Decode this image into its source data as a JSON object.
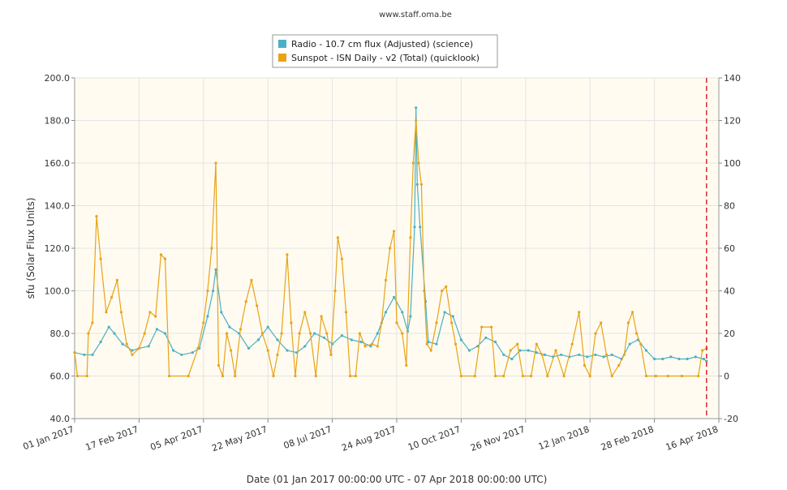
{
  "header": {
    "site": "www.staff.oma.be"
  },
  "colors": {
    "radio": "#4bb0c6",
    "sunspot": "#e8a317",
    "plot_bg": "#fffbf0",
    "marker": "#e0262b"
  },
  "chart_data": {
    "type": "line",
    "title": "",
    "xlabel": "Date (01 Jan 2017 00:00:00 UTC - 07 Apr 2018 00:00:00 UTC)",
    "ylabel": "sfu (Solar Flux Units)",
    "xlim": [
      "2017-01-01",
      "2018-04-16"
    ],
    "ylim": [
      40,
      200
    ],
    "y2lim": [
      -20,
      140
    ],
    "x_ticks": [
      "01 Jan 2017",
      "17 Feb 2017",
      "05 Apr 2017",
      "22 May 2017",
      "08 Jul 2017",
      "24 Aug 2017",
      "10 Oct 2017",
      "26 Nov 2017",
      "12 Jan 2018",
      "28 Feb 2018",
      "16 Apr 2018"
    ],
    "y_ticks": [
      "40.0",
      "60.0",
      "80.0",
      "100.0",
      "120.0",
      "140.0",
      "160.0",
      "180.0",
      "200.0"
    ],
    "y2_ticks": [
      "-20",
      "0",
      "20",
      "40",
      "60",
      "80",
      "100",
      "120",
      "140"
    ],
    "marker_date": "2018-04-07",
    "legend": {
      "position": "top-center",
      "entries": [
        "Radio - 10.7 cm flux (Adjusted) (science)",
        "Sunspot - ISN Daily - v2 (Total) (quicklook)"
      ]
    },
    "series": [
      {
        "name": "Radio - 10.7 cm flux (Adjusted) (science)",
        "axis": "left",
        "points": [
          [
            "2017-01-01",
            71
          ],
          [
            "2017-01-08",
            70
          ],
          [
            "2017-01-14",
            70
          ],
          [
            "2017-01-20",
            76
          ],
          [
            "2017-01-26",
            83
          ],
          [
            "2017-01-30",
            80
          ],
          [
            "2017-02-05",
            75
          ],
          [
            "2017-02-12",
            72
          ],
          [
            "2017-02-17",
            73
          ],
          [
            "2017-02-24",
            74
          ],
          [
            "2017-03-02",
            82
          ],
          [
            "2017-03-08",
            80
          ],
          [
            "2017-03-14",
            72
          ],
          [
            "2017-03-20",
            70
          ],
          [
            "2017-03-28",
            71
          ],
          [
            "2017-04-02",
            73
          ],
          [
            "2017-04-08",
            88
          ],
          [
            "2017-04-12",
            100
          ],
          [
            "2017-04-14",
            110
          ],
          [
            "2017-04-18",
            90
          ],
          [
            "2017-04-24",
            83
          ],
          [
            "2017-05-01",
            80
          ],
          [
            "2017-05-08",
            73
          ],
          [
            "2017-05-15",
            77
          ],
          [
            "2017-05-22",
            83
          ],
          [
            "2017-05-29",
            77
          ],
          [
            "2017-06-05",
            72
          ],
          [
            "2017-06-12",
            71
          ],
          [
            "2017-06-18",
            74
          ],
          [
            "2017-06-25",
            80
          ],
          [
            "2017-07-02",
            78
          ],
          [
            "2017-07-08",
            75
          ],
          [
            "2017-07-15",
            79
          ],
          [
            "2017-07-22",
            77
          ],
          [
            "2017-07-29",
            76
          ],
          [
            "2017-08-05",
            74
          ],
          [
            "2017-08-10",
            80
          ],
          [
            "2017-08-16",
            90
          ],
          [
            "2017-08-22",
            97
          ],
          [
            "2017-08-28",
            90
          ],
          [
            "2017-09-01",
            81
          ],
          [
            "2017-09-03",
            88
          ],
          [
            "2017-09-06",
            130
          ],
          [
            "2017-09-07",
            186
          ],
          [
            "2017-09-08",
            150
          ],
          [
            "2017-09-10",
            130
          ],
          [
            "2017-09-14",
            95
          ],
          [
            "2017-09-16",
            76
          ],
          [
            "2017-09-22",
            75
          ],
          [
            "2017-09-28",
            90
          ],
          [
            "2017-10-04",
            88
          ],
          [
            "2017-10-10",
            77
          ],
          [
            "2017-10-16",
            72
          ],
          [
            "2017-10-22",
            74
          ],
          [
            "2017-10-28",
            78
          ],
          [
            "2017-11-04",
            76
          ],
          [
            "2017-11-10",
            70
          ],
          [
            "2017-11-16",
            68
          ],
          [
            "2017-11-22",
            72
          ],
          [
            "2017-11-28",
            72
          ],
          [
            "2017-12-04",
            71
          ],
          [
            "2017-12-10",
            70
          ],
          [
            "2017-12-16",
            69
          ],
          [
            "2017-12-22",
            70
          ],
          [
            "2017-12-28",
            69
          ],
          [
            "2018-01-04",
            70
          ],
          [
            "2018-01-10",
            69
          ],
          [
            "2018-01-16",
            70
          ],
          [
            "2018-01-22",
            69
          ],
          [
            "2018-01-28",
            70
          ],
          [
            "2018-02-04",
            68
          ],
          [
            "2018-02-10",
            75
          ],
          [
            "2018-02-16",
            77
          ],
          [
            "2018-02-22",
            72
          ],
          [
            "2018-02-28",
            68
          ],
          [
            "2018-03-06",
            68
          ],
          [
            "2018-03-12",
            69
          ],
          [
            "2018-03-18",
            68
          ],
          [
            "2018-03-24",
            68
          ],
          [
            "2018-03-30",
            69
          ],
          [
            "2018-04-05",
            68
          ],
          [
            "2018-04-07",
            67
          ]
        ]
      },
      {
        "name": "Sunspot - ISN Daily - v2 (Total) (quicklook)",
        "axis": "right",
        "points": [
          [
            "2017-01-01",
            11
          ],
          [
            "2017-01-03",
            0
          ],
          [
            "2017-01-10",
            0
          ],
          [
            "2017-01-11",
            20
          ],
          [
            "2017-01-14",
            25
          ],
          [
            "2017-01-17",
            75
          ],
          [
            "2017-01-20",
            55
          ],
          [
            "2017-01-24",
            30
          ],
          [
            "2017-01-28",
            37
          ],
          [
            "2017-02-01",
            45
          ],
          [
            "2017-02-04",
            30
          ],
          [
            "2017-02-08",
            15
          ],
          [
            "2017-02-12",
            10
          ],
          [
            "2017-02-17",
            13
          ],
          [
            "2017-02-21",
            20
          ],
          [
            "2017-02-25",
            30
          ],
          [
            "2017-03-01",
            28
          ],
          [
            "2017-03-05",
            57
          ],
          [
            "2017-03-08",
            55
          ],
          [
            "2017-03-11",
            0
          ],
          [
            "2017-03-25",
            0
          ],
          [
            "2017-04-01",
            13
          ],
          [
            "2017-04-05",
            25
          ],
          [
            "2017-04-08",
            40
          ],
          [
            "2017-04-11",
            60
          ],
          [
            "2017-04-14",
            100
          ],
          [
            "2017-04-16",
            5
          ],
          [
            "2017-04-19",
            0
          ],
          [
            "2017-04-22",
            20
          ],
          [
            "2017-04-25",
            12
          ],
          [
            "2017-04-28",
            0
          ],
          [
            "2017-05-02",
            22
          ],
          [
            "2017-05-06",
            35
          ],
          [
            "2017-05-10",
            45
          ],
          [
            "2017-05-14",
            33
          ],
          [
            "2017-05-18",
            20
          ],
          [
            "2017-05-22",
            12
          ],
          [
            "2017-05-26",
            0
          ],
          [
            "2017-05-29",
            10
          ],
          [
            "2017-06-01",
            20
          ],
          [
            "2017-06-05",
            57
          ],
          [
            "2017-06-08",
            25
          ],
          [
            "2017-06-11",
            0
          ],
          [
            "2017-06-14",
            20
          ],
          [
            "2017-06-18",
            30
          ],
          [
            "2017-06-22",
            20
          ],
          [
            "2017-06-26",
            0
          ],
          [
            "2017-06-30",
            28
          ],
          [
            "2017-07-04",
            20
          ],
          [
            "2017-07-07",
            10
          ],
          [
            "2017-07-10",
            40
          ],
          [
            "2017-07-12",
            65
          ],
          [
            "2017-07-15",
            55
          ],
          [
            "2017-07-18",
            30
          ],
          [
            "2017-07-21",
            0
          ],
          [
            "2017-07-25",
            0
          ],
          [
            "2017-07-28",
            20
          ],
          [
            "2017-08-01",
            14
          ],
          [
            "2017-08-06",
            15
          ],
          [
            "2017-08-10",
            14
          ],
          [
            "2017-08-13",
            25
          ],
          [
            "2017-08-16",
            45
          ],
          [
            "2017-08-19",
            60
          ],
          [
            "2017-08-22",
            68
          ],
          [
            "2017-08-24",
            25
          ],
          [
            "2017-08-28",
            20
          ],
          [
            "2017-08-31",
            5
          ],
          [
            "2017-09-03",
            65
          ],
          [
            "2017-09-05",
            100
          ],
          [
            "2017-09-07",
            120
          ],
          [
            "2017-09-09",
            100
          ],
          [
            "2017-09-11",
            90
          ],
          [
            "2017-09-13",
            40
          ],
          [
            "2017-09-15",
            15
          ],
          [
            "2017-09-18",
            12
          ],
          [
            "2017-09-22",
            25
          ],
          [
            "2017-09-26",
            40
          ],
          [
            "2017-09-29",
            42
          ],
          [
            "2017-10-03",
            25
          ],
          [
            "2017-10-06",
            15
          ],
          [
            "2017-10-10",
            0
          ],
          [
            "2017-10-20",
            0
          ],
          [
            "2017-10-25",
            23
          ],
          [
            "2017-11-01",
            23
          ],
          [
            "2017-11-04",
            0
          ],
          [
            "2017-11-10",
            0
          ],
          [
            "2017-11-15",
            12
          ],
          [
            "2017-11-20",
            15
          ],
          [
            "2017-11-24",
            0
          ],
          [
            "2017-11-30",
            0
          ],
          [
            "2017-12-04",
            15
          ],
          [
            "2017-12-08",
            10
          ],
          [
            "2017-12-12",
            0
          ],
          [
            "2017-12-18",
            12
          ],
          [
            "2017-12-24",
            0
          ],
          [
            "2017-12-30",
            15
          ],
          [
            "2018-01-04",
            30
          ],
          [
            "2018-01-08",
            5
          ],
          [
            "2018-01-12",
            0
          ],
          [
            "2018-01-16",
            20
          ],
          [
            "2018-01-20",
            25
          ],
          [
            "2018-01-24",
            10
          ],
          [
            "2018-01-28",
            0
          ],
          [
            "2018-02-02",
            5
          ],
          [
            "2018-02-06",
            10
          ],
          [
            "2018-02-09",
            25
          ],
          [
            "2018-02-12",
            30
          ],
          [
            "2018-02-15",
            20
          ],
          [
            "2018-02-18",
            15
          ],
          [
            "2018-02-22",
            0
          ],
          [
            "2018-03-01",
            0
          ],
          [
            "2018-03-10",
            0
          ],
          [
            "2018-03-20",
            0
          ],
          [
            "2018-04-01",
            0
          ],
          [
            "2018-04-04",
            12
          ],
          [
            "2018-04-07",
            13
          ]
        ]
      }
    ]
  }
}
